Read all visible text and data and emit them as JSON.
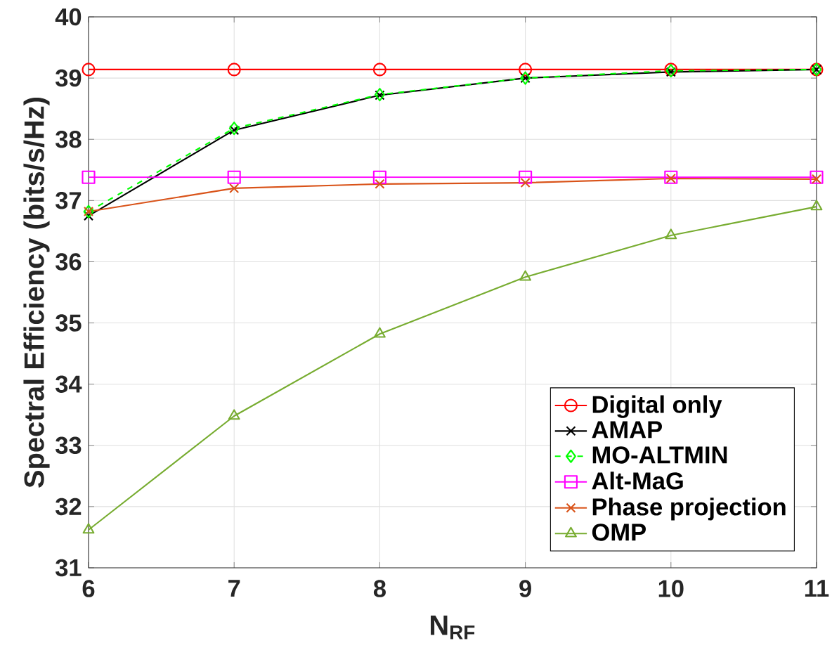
{
  "chart_data": {
    "type": "line",
    "xlabel": "N$_{RF}$",
    "ylabel": "Spectral Efficiency (bits/s/Hz)",
    "x": [
      6,
      7,
      8,
      9,
      10,
      11
    ],
    "xlim": [
      6,
      11
    ],
    "ylim": [
      31,
      40
    ],
    "xticks": [
      6,
      7,
      8,
      9,
      10,
      11
    ],
    "yticks": [
      31,
      32,
      33,
      34,
      35,
      36,
      37,
      38,
      39,
      40
    ],
    "grid": true,
    "legend": "bottom right",
    "series": [
      {
        "name": "Digital only",
        "color": "#ff0000",
        "marker": "circle",
        "values": [
          39.14,
          39.14,
          39.14,
          39.14,
          39.14,
          39.14
        ]
      },
      {
        "name": "AMAP",
        "color": "#000000",
        "marker": "cross",
        "values": [
          36.75,
          38.15,
          38.72,
          39.0,
          39.1,
          39.14
        ]
      },
      {
        "name": "MO-ALTMIN",
        "color": "#00ff00",
        "marker": "diamond",
        "line_style": "dashed",
        "values": [
          36.82,
          38.18,
          38.73,
          39.0,
          39.12,
          39.14
        ]
      },
      {
        "name": "Alt-MaG",
        "color": "#ff00ff",
        "marker": "square",
        "values": [
          37.38,
          37.38,
          37.38,
          37.38,
          37.38,
          37.38
        ]
      },
      {
        "name": "Phase projection",
        "color": "#d95319",
        "marker": "cross",
        "values": [
          36.82,
          37.2,
          37.27,
          37.29,
          37.36,
          37.35
        ]
      },
      {
        "name": "OMP",
        "color": "#77ac30",
        "marker": "triangle",
        "values": [
          31.62,
          33.48,
          34.82,
          35.75,
          36.43,
          36.9
        ]
      }
    ]
  }
}
